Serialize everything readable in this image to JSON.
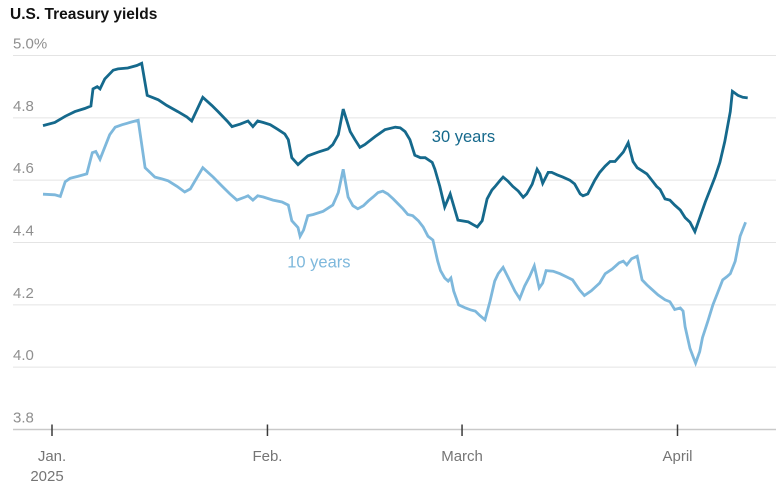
{
  "title": "U.S. Treasury yields",
  "colors": {
    "series_30y": "#15698c",
    "series_10y": "#7eb8dc",
    "grid": "#e4e4e4",
    "baseline": "#c9c9c9",
    "tick": "#3a3a3a",
    "y_label": "#8f8f8f",
    "month_label": "#757575",
    "title_color": "#121212",
    "background": "#ffffff"
  },
  "chart_data": {
    "type": "line",
    "title": "U.S. Treasury yields",
    "unit": "%",
    "grid": "horizontal-only",
    "y_axis": {
      "range": [
        3.8,
        5.0
      ],
      "ticks": [
        {
          "label": "5.0%",
          "value": 5.0
        },
        {
          "label": "4.8",
          "value": 4.8
        },
        {
          "label": "4.6",
          "value": 4.6
        },
        {
          "label": "4.4",
          "value": 4.4
        },
        {
          "label": "4.2",
          "value": 4.2
        },
        {
          "label": "4.0",
          "value": 4.0
        },
        {
          "label": "3.8",
          "value": 3.8
        }
      ]
    },
    "x_axis": {
      "description": "days since Jan 1, 2025",
      "year_label": "2025",
      "domain_days": [
        -1.3,
        100.2
      ],
      "months": [
        {
          "label": "Jan.",
          "day": 0
        },
        {
          "label": "Feb.",
          "day": 31
        },
        {
          "label": "March",
          "day": 59
        },
        {
          "label": "April",
          "day": 90
        }
      ]
    },
    "series": [
      {
        "name": "30 years",
        "color_key": "series_30y",
        "label_anchor": {
          "day": 59.2,
          "value": 4.74
        },
        "points": [
          [
            -1.3,
            4.775
          ],
          [
            0.4,
            4.785
          ],
          [
            1.9,
            4.805
          ],
          [
            3.3,
            4.82
          ],
          [
            4.7,
            4.83
          ],
          [
            5.6,
            4.838
          ],
          [
            5.9,
            4.893
          ],
          [
            6.5,
            4.9
          ],
          [
            6.9,
            4.893
          ],
          [
            7.6,
            4.925
          ],
          [
            8.8,
            4.953
          ],
          [
            9.5,
            4.957
          ],
          [
            10.9,
            4.96
          ],
          [
            12.2,
            4.968
          ],
          [
            12.9,
            4.975
          ],
          [
            13.7,
            4.872
          ],
          [
            14.4,
            4.866
          ],
          [
            15.3,
            4.858
          ],
          [
            16.5,
            4.84
          ],
          [
            18.1,
            4.82
          ],
          [
            19.4,
            4.803
          ],
          [
            20.1,
            4.79
          ],
          [
            21.7,
            4.866
          ],
          [
            23.0,
            4.84
          ],
          [
            23.9,
            4.82
          ],
          [
            25.2,
            4.79
          ],
          [
            25.9,
            4.772
          ],
          [
            27.1,
            4.78
          ],
          [
            28.2,
            4.79
          ],
          [
            28.9,
            4.772
          ],
          [
            29.6,
            4.79
          ],
          [
            30.4,
            4.785
          ],
          [
            31.4,
            4.778
          ],
          [
            32.5,
            4.763
          ],
          [
            33.5,
            4.748
          ],
          [
            34.0,
            4.73
          ],
          [
            34.5,
            4.672
          ],
          [
            35.4,
            4.65
          ],
          [
            36.1,
            4.664
          ],
          [
            36.8,
            4.678
          ],
          [
            38.3,
            4.69
          ],
          [
            39.7,
            4.7
          ],
          [
            40.4,
            4.714
          ],
          [
            41.2,
            4.746
          ],
          [
            41.9,
            4.828
          ],
          [
            42.9,
            4.756
          ],
          [
            43.6,
            4.73
          ],
          [
            44.3,
            4.705
          ],
          [
            45.0,
            4.714
          ],
          [
            46.5,
            4.74
          ],
          [
            47.9,
            4.762
          ],
          [
            49.4,
            4.77
          ],
          [
            50.1,
            4.768
          ],
          [
            50.8,
            4.756
          ],
          [
            51.5,
            4.73
          ],
          [
            52.2,
            4.68
          ],
          [
            53.0,
            4.672
          ],
          [
            53.7,
            4.672
          ],
          [
            54.7,
            4.657
          ],
          [
            55.1,
            4.635
          ],
          [
            55.8,
            4.58
          ],
          [
            56.5,
            4.514
          ],
          [
            57.3,
            4.556
          ],
          [
            58.4,
            4.472
          ],
          [
            59.9,
            4.466
          ],
          [
            60.6,
            4.457
          ],
          [
            61.2,
            4.45
          ],
          [
            61.9,
            4.47
          ],
          [
            62.6,
            4.54
          ],
          [
            63.3,
            4.568
          ],
          [
            63.7,
            4.578
          ],
          [
            64.5,
            4.6
          ],
          [
            64.9,
            4.61
          ],
          [
            65.6,
            4.597
          ],
          [
            66.3,
            4.58
          ],
          [
            67.1,
            4.565
          ],
          [
            67.8,
            4.545
          ],
          [
            68.3,
            4.556
          ],
          [
            69.1,
            4.587
          ],
          [
            69.8,
            4.635
          ],
          [
            70.2,
            4.62
          ],
          [
            70.6,
            4.59
          ],
          [
            71.4,
            4.625
          ],
          [
            71.9,
            4.625
          ],
          [
            72.7,
            4.617
          ],
          [
            73.5,
            4.61
          ],
          [
            74.5,
            4.6
          ],
          [
            75.2,
            4.588
          ],
          [
            76.0,
            4.556
          ],
          [
            76.4,
            4.55
          ],
          [
            77.1,
            4.556
          ],
          [
            78.1,
            4.6
          ],
          [
            78.8,
            4.625
          ],
          [
            79.6,
            4.645
          ],
          [
            80.3,
            4.66
          ],
          [
            81.0,
            4.66
          ],
          [
            82.2,
            4.69
          ],
          [
            82.9,
            4.72
          ],
          [
            83.6,
            4.66
          ],
          [
            84.2,
            4.64
          ],
          [
            84.9,
            4.63
          ],
          [
            85.6,
            4.62
          ],
          [
            86.3,
            4.6
          ],
          [
            87.0,
            4.58
          ],
          [
            87.5,
            4.57
          ],
          [
            88.2,
            4.54
          ],
          [
            88.9,
            4.536
          ],
          [
            89.6,
            4.52
          ],
          [
            90.4,
            4.504
          ],
          [
            91.1,
            4.48
          ],
          [
            91.8,
            4.465
          ],
          [
            92.5,
            4.435
          ],
          [
            94.0,
            4.53
          ],
          [
            94.7,
            4.57
          ],
          [
            95.4,
            4.61
          ],
          [
            96.1,
            4.657
          ],
          [
            96.8,
            4.724
          ],
          [
            97.6,
            4.82
          ],
          [
            97.9,
            4.885
          ],
          [
            98.7,
            4.872
          ],
          [
            99.4,
            4.866
          ],
          [
            100.1,
            4.864
          ]
        ]
      },
      {
        "name": "10 years",
        "color_key": "series_10y",
        "label_anchor": {
          "day": 38.4,
          "value": 4.337
        },
        "points": [
          [
            -1.3,
            4.555
          ],
          [
            0.4,
            4.553
          ],
          [
            1.2,
            4.548
          ],
          [
            1.9,
            4.595
          ],
          [
            2.6,
            4.606
          ],
          [
            3.7,
            4.612
          ],
          [
            5.0,
            4.62
          ],
          [
            5.8,
            4.688
          ],
          [
            6.3,
            4.692
          ],
          [
            6.9,
            4.667
          ],
          [
            8.3,
            4.746
          ],
          [
            9.1,
            4.77
          ],
          [
            10.1,
            4.778
          ],
          [
            11.5,
            4.787
          ],
          [
            12.4,
            4.792
          ],
          [
            13.4,
            4.64
          ],
          [
            14.1,
            4.625
          ],
          [
            14.8,
            4.61
          ],
          [
            15.8,
            4.604
          ],
          [
            16.7,
            4.598
          ],
          [
            18.0,
            4.58
          ],
          [
            19.1,
            4.562
          ],
          [
            19.9,
            4.572
          ],
          [
            21.7,
            4.64
          ],
          [
            23.2,
            4.61
          ],
          [
            24.5,
            4.58
          ],
          [
            25.6,
            4.556
          ],
          [
            26.6,
            4.536
          ],
          [
            27.8,
            4.546
          ],
          [
            28.2,
            4.55
          ],
          [
            28.9,
            4.536
          ],
          [
            29.6,
            4.55
          ],
          [
            30.4,
            4.546
          ],
          [
            31.8,
            4.536
          ],
          [
            33.1,
            4.53
          ],
          [
            34.0,
            4.52
          ],
          [
            34.5,
            4.47
          ],
          [
            35.4,
            4.448
          ],
          [
            35.7,
            4.42
          ],
          [
            36.2,
            4.44
          ],
          [
            36.8,
            4.486
          ],
          [
            37.6,
            4.49
          ],
          [
            39.0,
            4.5
          ],
          [
            40.4,
            4.52
          ],
          [
            41.2,
            4.56
          ],
          [
            41.9,
            4.635
          ],
          [
            42.6,
            4.546
          ],
          [
            43.3,
            4.518
          ],
          [
            44.0,
            4.508
          ],
          [
            44.8,
            4.518
          ],
          [
            45.5,
            4.533
          ],
          [
            46.2,
            4.546
          ],
          [
            46.9,
            4.56
          ],
          [
            47.6,
            4.565
          ],
          [
            48.3,
            4.556
          ],
          [
            49.1,
            4.54
          ],
          [
            49.8,
            4.524
          ],
          [
            50.5,
            4.508
          ],
          [
            51.2,
            4.49
          ],
          [
            51.9,
            4.486
          ],
          [
            52.7,
            4.47
          ],
          [
            53.4,
            4.45
          ],
          [
            54.1,
            4.42
          ],
          [
            54.8,
            4.408
          ],
          [
            55.5,
            4.34
          ],
          [
            55.9,
            4.31
          ],
          [
            56.5,
            4.286
          ],
          [
            57.0,
            4.276
          ],
          [
            57.4,
            4.286
          ],
          [
            57.8,
            4.244
          ],
          [
            58.5,
            4.2
          ],
          [
            59.5,
            4.19
          ],
          [
            60.2,
            4.184
          ],
          [
            60.9,
            4.18
          ],
          [
            61.6,
            4.165
          ],
          [
            62.3,
            4.152
          ],
          [
            63.0,
            4.21
          ],
          [
            63.7,
            4.276
          ],
          [
            64.2,
            4.3
          ],
          [
            64.9,
            4.32
          ],
          [
            65.9,
            4.276
          ],
          [
            66.6,
            4.244
          ],
          [
            67.3,
            4.22
          ],
          [
            68.0,
            4.26
          ],
          [
            68.7,
            4.29
          ],
          [
            69.4,
            4.325
          ],
          [
            70.1,
            4.254
          ],
          [
            70.6,
            4.27
          ],
          [
            71.1,
            4.31
          ],
          [
            72.1,
            4.308
          ],
          [
            73.1,
            4.3
          ],
          [
            74.0,
            4.29
          ],
          [
            74.9,
            4.28
          ],
          [
            75.9,
            4.248
          ],
          [
            76.6,
            4.23
          ],
          [
            77.6,
            4.245
          ],
          [
            78.8,
            4.27
          ],
          [
            79.6,
            4.3
          ],
          [
            80.6,
            4.315
          ],
          [
            81.6,
            4.335
          ],
          [
            82.2,
            4.34
          ],
          [
            82.7,
            4.328
          ],
          [
            83.4,
            4.348
          ],
          [
            84.2,
            4.356
          ],
          [
            84.9,
            4.28
          ],
          [
            85.6,
            4.264
          ],
          [
            86.3,
            4.25
          ],
          [
            87.2,
            4.232
          ],
          [
            88.2,
            4.216
          ],
          [
            88.9,
            4.21
          ],
          [
            89.6,
            4.185
          ],
          [
            90.4,
            4.19
          ],
          [
            90.8,
            4.18
          ],
          [
            91.1,
            4.13
          ],
          [
            91.8,
            4.06
          ],
          [
            92.3,
            4.03
          ],
          [
            92.6,
            4.013
          ],
          [
            93.2,
            4.05
          ],
          [
            93.6,
            4.095
          ],
          [
            94.4,
            4.15
          ],
          [
            95.1,
            4.2
          ],
          [
            95.8,
            4.24
          ],
          [
            96.5,
            4.28
          ],
          [
            97.1,
            4.29
          ],
          [
            97.6,
            4.3
          ],
          [
            98.3,
            4.34
          ],
          [
            99.0,
            4.42
          ],
          [
            99.8,
            4.465
          ]
        ]
      }
    ]
  }
}
